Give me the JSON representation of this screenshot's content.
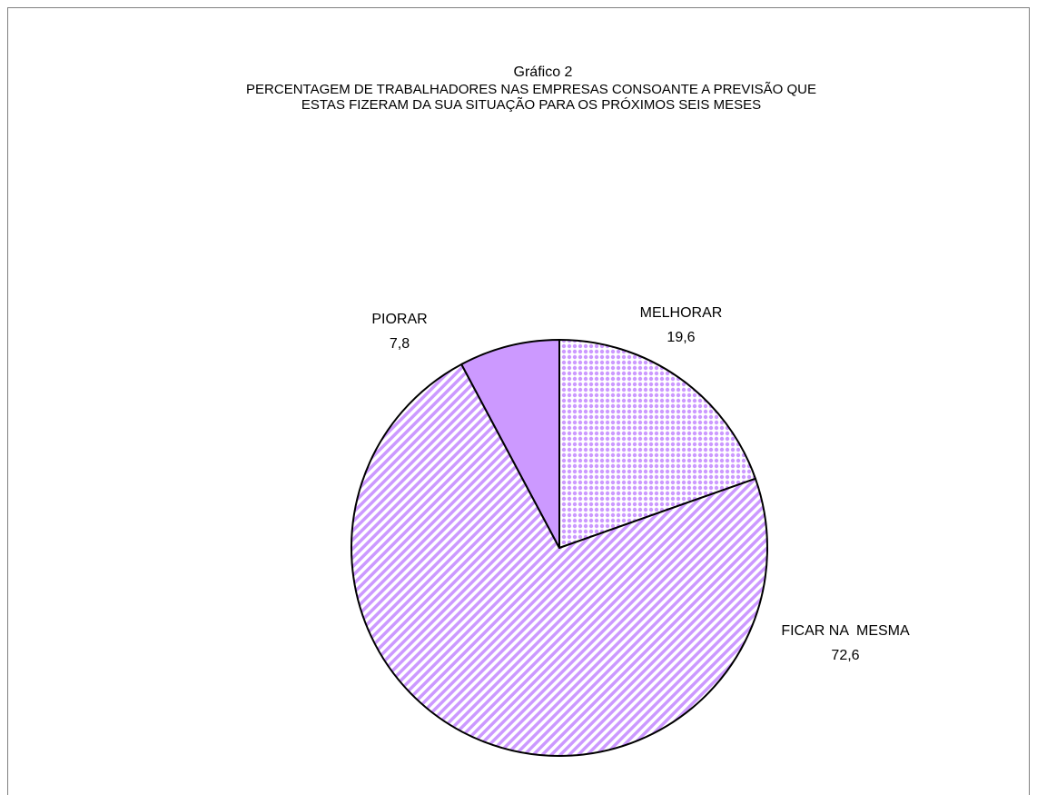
{
  "chart_data": {
    "type": "pie",
    "title": "Gráfico 2",
    "subtitle": [
      "PERCENTAGEM DE TRABALHADORES NAS EMPRESAS CONSOANTE A PREVISÃO QUE",
      "ESTAS FIZERAM DA SUA SITUAÇÃO PARA OS PRÓXIMOS SEIS MESES"
    ],
    "categories": [
      "MELHORAR",
      "FICAR NA  MESMA",
      "PIORAR"
    ],
    "values": [
      19.6,
      72.6,
      7.8
    ],
    "value_labels": [
      "19,6",
      "72,6",
      "7,8"
    ],
    "colors": [
      "#cc99ff",
      "#cc99ff",
      "#cc99ff"
    ],
    "patterns": [
      "dots",
      "stripes",
      "solid"
    ]
  }
}
